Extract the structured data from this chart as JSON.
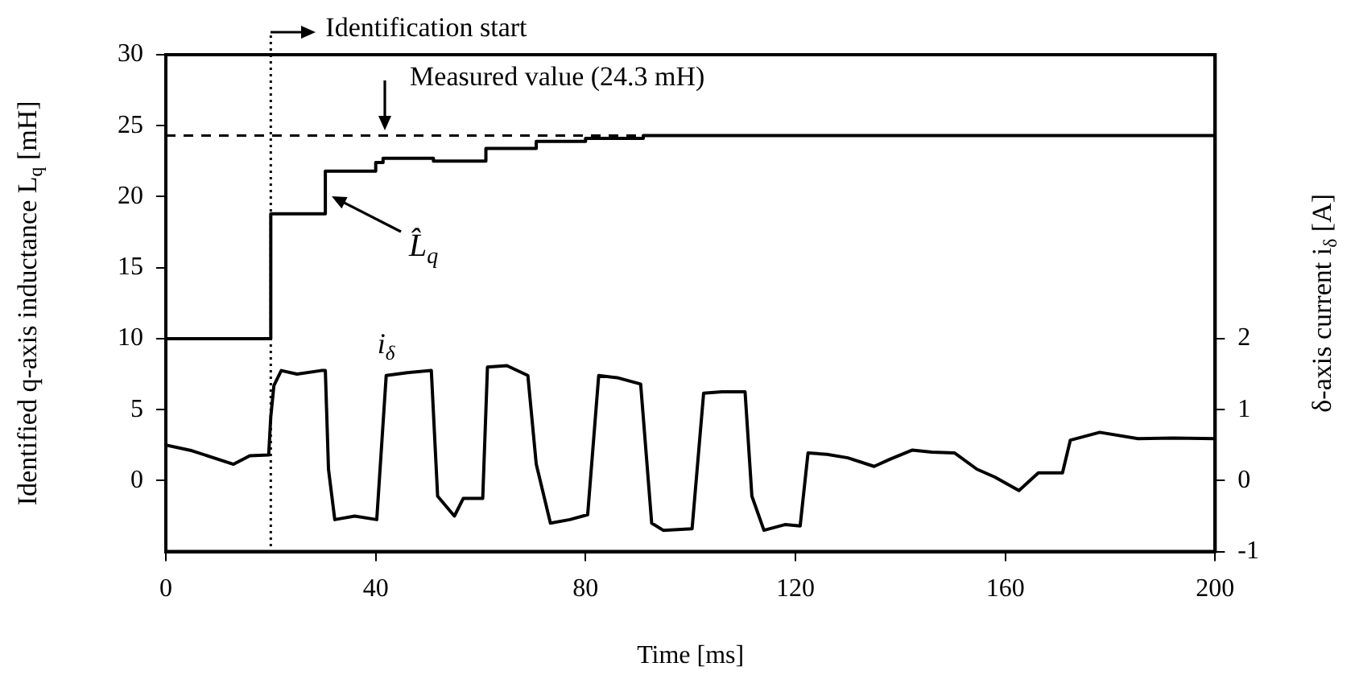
{
  "chart_data": {
    "type": "line",
    "xlabel": "Time [ms]",
    "ylabel": "Identified q-axis inductance L$_{q}$ [mH]",
    "y2label": "δ-axis current i$_{δ}$ [A]",
    "xlim": [
      0,
      200
    ],
    "xticks": [
      0,
      40,
      80,
      120,
      160,
      200
    ],
    "ylim": [
      -5,
      30
    ],
    "yticks": [
      0,
      5,
      10,
      15,
      20,
      25,
      30
    ],
    "y2lim": [
      -1,
      6
    ],
    "y2ticks": [
      -1,
      0,
      1,
      2
    ],
    "grid": false,
    "legend": false,
    "marker": "none",
    "series": [
      {
        "name": "L̂$_{q}$",
        "type": "step",
        "color": "#000000",
        "axis": "y",
        "x": [
          0,
          20,
          30.4,
          40,
          41.4,
          51,
          61,
          70.6,
          80,
          91,
          200
        ],
        "values": [
          10,
          18.8,
          21.8,
          22.4,
          22.7,
          22.5,
          23.4,
          23.9,
          24.1,
          24.3,
          24.3
        ]
      },
      {
        "name": "i$_{δ}$",
        "type": "line",
        "color": "#000000",
        "axis": "y2",
        "x": [
          0,
          5,
          12.9,
          16,
          19.6,
          20,
          20.6,
          22,
          25,
          29.6,
          30.4,
          31,
          32.2,
          36,
          40.2,
          42,
          46,
          50.6,
          51.8,
          55,
          56.7,
          60.4,
          61.3,
          65,
          69,
          70.6,
          73.3,
          77,
          80.4,
          82.5,
          86,
          90.5,
          92.6,
          94.8,
          100.3,
          102.5,
          106,
          110.4,
          111.7,
          114,
          118,
          120.9,
          122.4,
          126,
          130,
          135,
          138,
          142.3,
          146,
          150.3,
          154.6,
          158,
          162.6,
          166.3,
          170.9,
          172.4,
          178,
          185.3,
          192,
          200
        ],
        "values": [
          0.5,
          0.42,
          0.23,
          0.35,
          0.36,
          0.9,
          1.34,
          1.55,
          1.5,
          1.55,
          1.55,
          0.16,
          -0.55,
          -0.5,
          -0.55,
          1.48,
          1.52,
          1.55,
          -0.22,
          -0.5,
          -0.25,
          -0.25,
          1.6,
          1.62,
          1.48,
          0.23,
          -0.6,
          -0.55,
          -0.48,
          1.48,
          1.45,
          1.36,
          -0.6,
          -0.7,
          -0.68,
          1.23,
          1.25,
          1.25,
          -0.22,
          -0.7,
          -0.62,
          -0.64,
          0.39,
          0.37,
          0.32,
          0.2,
          0.3,
          0.43,
          0.4,
          0.39,
          0.16,
          0.05,
          -0.14,
          0.11,
          0.11,
          0.57,
          0.68,
          0.59,
          0.6,
          0.59
        ]
      }
    ],
    "ref_lines": [
      {
        "axis": "x",
        "value": 20,
        "label": "Identification start",
        "line_style": "dotted",
        "color": "#000000"
      },
      {
        "axis": "y",
        "value": 24.3,
        "label": "Measured value (24.3 mH)",
        "line_style": "dashed",
        "color": "#000000"
      }
    ]
  }
}
